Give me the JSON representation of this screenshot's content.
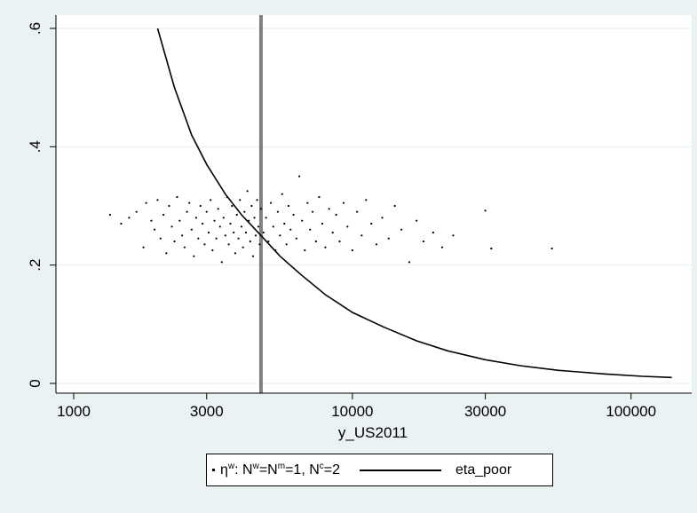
{
  "chart_data": {
    "type": "scatter",
    "xlabel": "y_US2011",
    "ylabel": "",
    "xscale": "log",
    "xlim": [
      1000,
      150000
    ],
    "ylim": [
      0,
      0.6
    ],
    "x_ticks": [
      1000,
      3000,
      10000,
      30000,
      100000
    ],
    "x_tick_labels": [
      "1000",
      "3000",
      "10000",
      "30000",
      "100000"
    ],
    "y_ticks": [
      0,
      0.2,
      0.4,
      0.6
    ],
    "y_tick_labels": [
      "0",
      ".2",
      ".4",
      ".6"
    ],
    "grid": true,
    "vertical_line": {
      "x": 4700,
      "color": "#808080"
    },
    "series": [
      {
        "name": "η^w: N^w=N^m=1, N^c=2",
        "kind": "scatter",
        "color": "#000000",
        "points": [
          [
            1350,
            0.285
          ],
          [
            1480,
            0.27
          ],
          [
            1580,
            0.28
          ],
          [
            1680,
            0.29
          ],
          [
            1780,
            0.23
          ],
          [
            1820,
            0.305
          ],
          [
            1900,
            0.275
          ],
          [
            1950,
            0.26
          ],
          [
            2000,
            0.31
          ],
          [
            2050,
            0.245
          ],
          [
            2100,
            0.285
          ],
          [
            2150,
            0.22
          ],
          [
            2200,
            0.3
          ],
          [
            2250,
            0.265
          ],
          [
            2300,
            0.24
          ],
          [
            2350,
            0.315
          ],
          [
            2400,
            0.275
          ],
          [
            2450,
            0.25
          ],
          [
            2500,
            0.23
          ],
          [
            2550,
            0.29
          ],
          [
            2600,
            0.305
          ],
          [
            2650,
            0.26
          ],
          [
            2700,
            0.215
          ],
          [
            2750,
            0.28
          ],
          [
            2800,
            0.245
          ],
          [
            2850,
            0.3
          ],
          [
            2900,
            0.27
          ],
          [
            2950,
            0.235
          ],
          [
            3000,
            0.29
          ],
          [
            3050,
            0.255
          ],
          [
            3100,
            0.31
          ],
          [
            3150,
            0.225
          ],
          [
            3200,
            0.275
          ],
          [
            3250,
            0.245
          ],
          [
            3300,
            0.295
          ],
          [
            3350,
            0.265
          ],
          [
            3400,
            0.205
          ],
          [
            3450,
            0.28
          ],
          [
            3500,
            0.25
          ],
          [
            3550,
            0.315
          ],
          [
            3600,
            0.235
          ],
          [
            3650,
            0.27
          ],
          [
            3700,
            0.3
          ],
          [
            3750,
            0.255
          ],
          [
            3800,
            0.22
          ],
          [
            3850,
            0.285
          ],
          [
            3900,
            0.245
          ],
          [
            3950,
            0.31
          ],
          [
            4000,
            0.265
          ],
          [
            4050,
            0.23
          ],
          [
            4100,
            0.29
          ],
          [
            4150,
            0.255
          ],
          [
            4200,
            0.325
          ],
          [
            4250,
            0.275
          ],
          [
            4300,
            0.24
          ],
          [
            4350,
            0.3
          ],
          [
            4400,
            0.215
          ],
          [
            4450,
            0.28
          ],
          [
            4500,
            0.25
          ],
          [
            4550,
            0.31
          ],
          [
            4600,
            0.265
          ],
          [
            4650,
            0.235
          ],
          [
            4700,
            0.295
          ],
          [
            4800,
            0.255
          ],
          [
            4900,
            0.28
          ],
          [
            5000,
            0.24
          ],
          [
            5100,
            0.305
          ],
          [
            5200,
            0.265
          ],
          [
            5300,
            0.225
          ],
          [
            5400,
            0.29
          ],
          [
            5500,
            0.25
          ],
          [
            5600,
            0.32
          ],
          [
            5700,
            0.27
          ],
          [
            5800,
            0.235
          ],
          [
            5900,
            0.3
          ],
          [
            6000,
            0.26
          ],
          [
            6150,
            0.285
          ],
          [
            6300,
            0.245
          ],
          [
            6450,
            0.35
          ],
          [
            6600,
            0.275
          ],
          [
            6750,
            0.225
          ],
          [
            6900,
            0.305
          ],
          [
            7050,
            0.26
          ],
          [
            7200,
            0.29
          ],
          [
            7400,
            0.24
          ],
          [
            7600,
            0.315
          ],
          [
            7800,
            0.27
          ],
          [
            8000,
            0.23
          ],
          [
            8250,
            0.295
          ],
          [
            8500,
            0.255
          ],
          [
            8750,
            0.285
          ],
          [
            9000,
            0.24
          ],
          [
            9300,
            0.305
          ],
          [
            9600,
            0.265
          ],
          [
            10000,
            0.225
          ],
          [
            10400,
            0.29
          ],
          [
            10800,
            0.25
          ],
          [
            11200,
            0.31
          ],
          [
            11700,
            0.27
          ],
          [
            12200,
            0.235
          ],
          [
            12800,
            0.28
          ],
          [
            13500,
            0.245
          ],
          [
            14200,
            0.3
          ],
          [
            15000,
            0.26
          ],
          [
            16000,
            0.205
          ],
          [
            17000,
            0.275
          ],
          [
            18000,
            0.24
          ],
          [
            19500,
            0.255
          ],
          [
            21000,
            0.23
          ],
          [
            23000,
            0.25
          ],
          [
            30000,
            0.292
          ],
          [
            31500,
            0.228
          ],
          [
            52000,
            0.228
          ]
        ]
      },
      {
        "name": "eta_poor",
        "kind": "line",
        "color": "#000000",
        "points": [
          [
            2000,
            0.6
          ],
          [
            2300,
            0.5
          ],
          [
            2650,
            0.42
          ],
          [
            3000,
            0.37
          ],
          [
            3500,
            0.32
          ],
          [
            4000,
            0.285
          ],
          [
            4700,
            0.25
          ],
          [
            5500,
            0.215
          ],
          [
            6500,
            0.185
          ],
          [
            8000,
            0.15
          ],
          [
            10000,
            0.12
          ],
          [
            13000,
            0.095
          ],
          [
            17000,
            0.072
          ],
          [
            22000,
            0.055
          ],
          [
            30000,
            0.04
          ],
          [
            40000,
            0.03
          ],
          [
            55000,
            0.022
          ],
          [
            80000,
            0.016
          ],
          [
            110000,
            0.012
          ],
          [
            140000,
            0.01
          ]
        ]
      }
    ],
    "legend": {
      "position": "bottom",
      "entries": [
        "η^w: N^w=N^m=1, N^c=2",
        "eta_poor"
      ]
    }
  },
  "legend": {
    "scatter": {
      "eta": "η",
      "sup_w1": "w",
      "text1": ": N",
      "sup_w2": "w",
      "text2": "=N",
      "sup_m": "m",
      "text3": "=1, N",
      "sup_c": "c",
      "text4": "=2"
    },
    "line_label": "eta_poor"
  }
}
